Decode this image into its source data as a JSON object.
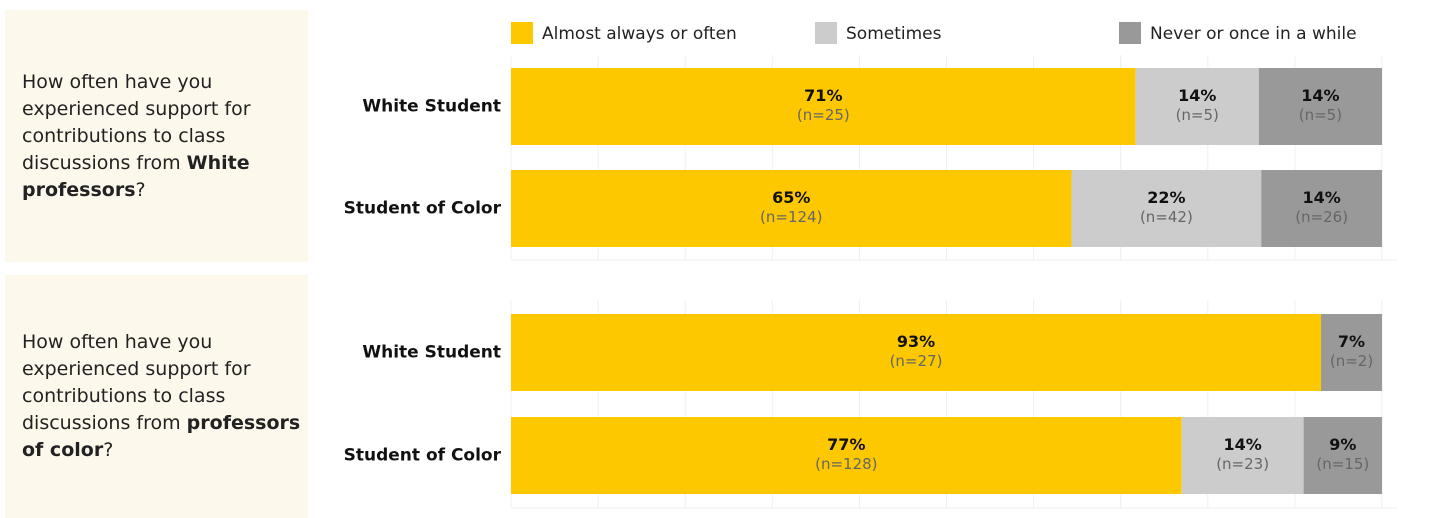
{
  "chart_data": [
    {
      "type": "stacked-bar-100",
      "question": [
        "How often have you experienced support for contributions to class discussions from ",
        "White professors",
        "?"
      ],
      "categories": [
        "White Student",
        "Student of Color"
      ],
      "xlim": [
        0,
        100
      ],
      "xticks": [
        0,
        10,
        20,
        30,
        40,
        50,
        60,
        70,
        80,
        90,
        100
      ],
      "grid": true,
      "series": [
        {
          "name": "Almost always or often",
          "color": "#fdc800",
          "values": [
            71,
            65
          ],
          "value_labels": [
            "71%",
            "65%"
          ],
          "counts": [
            25,
            124
          ],
          "count_labels": [
            "(n=25)",
            "(n=124)"
          ]
        },
        {
          "name": "Sometimes",
          "color": "#cccccc",
          "values": [
            14,
            22
          ],
          "value_labels": [
            "14%",
            "22%"
          ],
          "counts": [
            5,
            42
          ],
          "count_labels": [
            "(n=5)",
            "(n=42)"
          ]
        },
        {
          "name": "Never or once in a while",
          "color": "#999999",
          "values": [
            14,
            14
          ],
          "value_labels": [
            "14%",
            "14%"
          ],
          "counts": [
            5,
            26
          ],
          "count_labels": [
            "(n=5)",
            "(n=26)"
          ]
        }
      ]
    },
    {
      "type": "stacked-bar-100",
      "question": [
        "How often have you experienced support for contributions to class discussions from ",
        "professors of color",
        "?"
      ],
      "categories": [
        "White Student",
        "Student of Color"
      ],
      "xlim": [
        0,
        100
      ],
      "xticks": [
        0,
        10,
        20,
        30,
        40,
        50,
        60,
        70,
        80,
        90,
        100
      ],
      "grid": true,
      "series": [
        {
          "name": "Almost always or often",
          "color": "#fdc800",
          "values": [
            93,
            77
          ],
          "value_labels": [
            "93%",
            "77%"
          ],
          "counts": [
            27,
            128
          ],
          "count_labels": [
            "(n=27)",
            "(n=128)"
          ]
        },
        {
          "name": "Sometimes",
          "color": "#cccccc",
          "values": [
            null,
            14
          ],
          "value_labels": [
            null,
            "14%"
          ],
          "counts": [
            null,
            23
          ],
          "count_labels": [
            null,
            "(n=23)"
          ]
        },
        {
          "name": "Never or once in a while",
          "color": "#999999",
          "values": [
            7,
            9
          ],
          "value_labels": [
            "7%",
            "9%"
          ],
          "counts": [
            2,
            15
          ],
          "count_labels": [
            "(n=2)",
            "(n=15)"
          ]
        }
      ]
    }
  ]
}
